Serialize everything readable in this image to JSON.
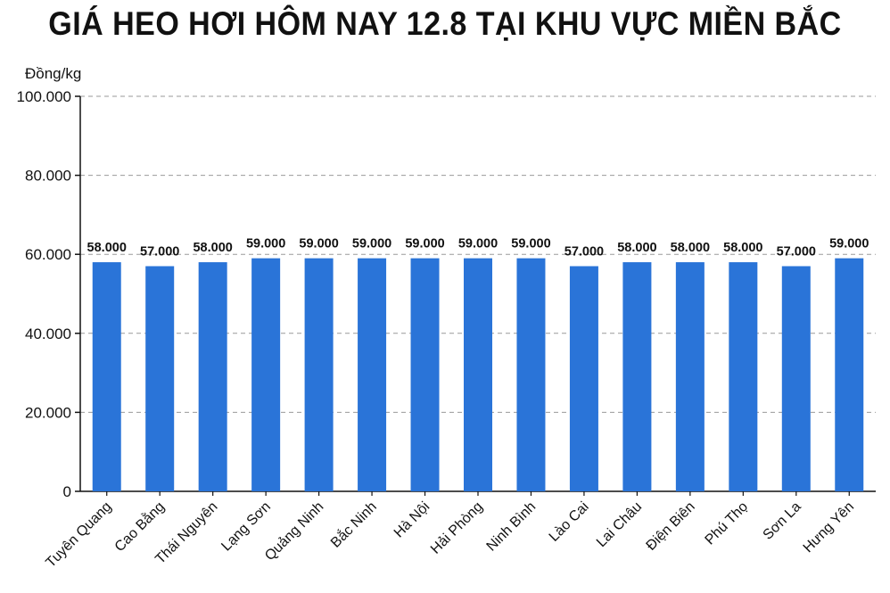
{
  "chart_data": {
    "type": "bar",
    "title": "GIÁ HEO HƠI HÔM NAY 12.8 TẠI KHU VỰC MIỀN BẮC",
    "ylabel": "Đồng/kg",
    "xlabel": "",
    "categories": [
      "Tuyên Quang",
      "Cao Bằng",
      "Thái Nguyên",
      "Lạng Sơn",
      "Quảng Ninh",
      "Bắc Ninh",
      "Hà Nội",
      "Hải Phòng",
      "Ninh Bình",
      "Lào Cai",
      "Lai Châu",
      "Điện Biên",
      "Phú Thọ",
      "Sơn La",
      "Hưng Yên"
    ],
    "values": [
      58000,
      57000,
      58000,
      59000,
      59000,
      59000,
      59000,
      59000,
      59000,
      57000,
      58000,
      58000,
      58000,
      57000,
      59000
    ],
    "data_labels": [
      "58.000",
      "57.000",
      "58.000",
      "59.000",
      "59.000",
      "59.000",
      "59.000",
      "59.000",
      "59.000",
      "57.000",
      "58.000",
      "58.000",
      "58.000",
      "57.000",
      "59.000"
    ],
    "ylim": [
      0,
      100000
    ],
    "yticks": [
      0,
      20000,
      40000,
      60000,
      80000,
      100000
    ],
    "ytick_labels": [
      "0",
      "20.000",
      "40.000",
      "60.000",
      "80.000",
      "100.000"
    ],
    "grid": true,
    "bar_color": "#2a74d8"
  }
}
